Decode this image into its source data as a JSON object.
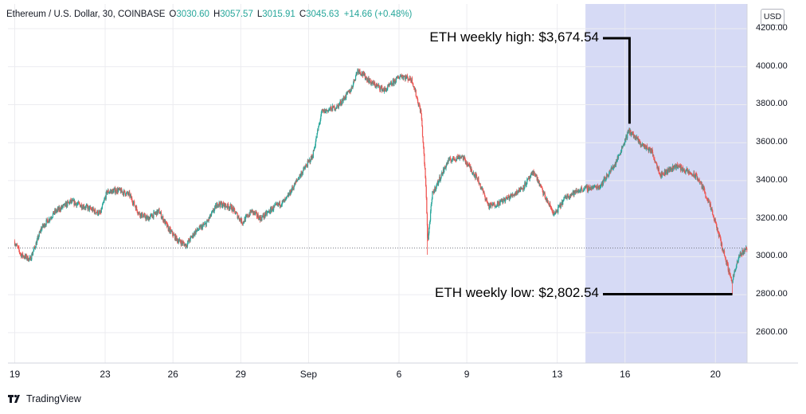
{
  "header": {
    "symbol": "Ethereum / U.S. Dollar, 30, COINBASE",
    "o_label": "O",
    "o": "3030.60",
    "h_label": "H",
    "h": "3057.57",
    "l_label": "L",
    "l": "3015.91",
    "c_label": "C",
    "c": "3045.63",
    "change": "+14.66 (+0.48%)"
  },
  "currency_button": "USD",
  "branding": "TradingView",
  "colors": {
    "up": "#26a69a",
    "down": "#ef5350",
    "highlight": "#d6daf5",
    "grid": "#ececf0",
    "annotation": "#000000"
  },
  "chart_data": {
    "type": "candlestick",
    "ylim": [
      2440,
      4330
    ],
    "yticks": [
      "2600.00",
      "2800.00",
      "3000.00",
      "3200.00",
      "3400.00",
      "3600.00",
      "3800.00",
      "4000.00",
      "4200.00"
    ],
    "ytick_values": [
      2600,
      2800,
      3000,
      3200,
      3400,
      3600,
      3800,
      4000,
      4200
    ],
    "xticks": [
      "19",
      "23",
      "26",
      "29",
      "Sep",
      "6",
      "9",
      "13",
      "16",
      "20"
    ],
    "xtick_days": [
      0,
      4,
      7,
      10,
      13,
      17,
      20,
      24,
      27,
      31
    ],
    "xlim_days": [
      -0.3,
      32.4
    ],
    "current_price": 3045.63,
    "highlight_days": [
      25.25,
      32.4
    ],
    "anchors": [
      [
        0,
        3080
      ],
      [
        0.3,
        3010
      ],
      [
        0.7,
        2985
      ],
      [
        1.0,
        3080
      ],
      [
        1.2,
        3150
      ],
      [
        1.8,
        3235
      ],
      [
        2.5,
        3290
      ],
      [
        3.3,
        3255
      ],
      [
        3.8,
        3225
      ],
      [
        4.1,
        3340
      ],
      [
        4.6,
        3350
      ],
      [
        5.1,
        3325
      ],
      [
        5.5,
        3230
      ],
      [
        5.9,
        3200
      ],
      [
        6.4,
        3240
      ],
      [
        6.8,
        3150
      ],
      [
        7.2,
        3090
      ],
      [
        7.6,
        3060
      ],
      [
        8.0,
        3130
      ],
      [
        8.5,
        3175
      ],
      [
        9.0,
        3280
      ],
      [
        9.6,
        3260
      ],
      [
        10.1,
        3180
      ],
      [
        10.5,
        3240
      ],
      [
        10.9,
        3200
      ],
      [
        11.5,
        3260
      ],
      [
        12.0,
        3295
      ],
      [
        12.6,
        3420
      ],
      [
        13.2,
        3530
      ],
      [
        13.6,
        3760
      ],
      [
        14.3,
        3790
      ],
      [
        14.9,
        3880
      ],
      [
        15.2,
        3985
      ],
      [
        15.8,
        3915
      ],
      [
        16.4,
        3875
      ],
      [
        17.1,
        3955
      ],
      [
        17.6,
        3930
      ],
      [
        18.0,
        3755
      ],
      [
        18.2,
        3395
      ],
      [
        18.3,
        3080
      ],
      [
        18.5,
        3330
      ],
      [
        19.2,
        3505
      ],
      [
        19.8,
        3530
      ],
      [
        20.5,
        3410
      ],
      [
        21.0,
        3265
      ],
      [
        21.4,
        3280
      ],
      [
        22.0,
        3320
      ],
      [
        22.5,
        3365
      ],
      [
        23.0,
        3445
      ],
      [
        23.5,
        3310
      ],
      [
        23.9,
        3220
      ],
      [
        24.4,
        3315
      ],
      [
        25.1,
        3355
      ],
      [
        25.9,
        3370
      ],
      [
        26.6,
        3490
      ],
      [
        27.2,
        3665
      ],
      [
        27.7,
        3595
      ],
      [
        28.2,
        3555
      ],
      [
        28.6,
        3430
      ],
      [
        29.3,
        3480
      ],
      [
        29.8,
        3445
      ],
      [
        30.2,
        3420
      ],
      [
        30.5,
        3355
      ],
      [
        30.8,
        3260
      ],
      [
        31.1,
        3145
      ],
      [
        31.5,
        2975
      ],
      [
        31.75,
        2870
      ],
      [
        32.1,
        3010
      ],
      [
        32.4,
        3045
      ]
    ],
    "spikes": [
      {
        "day": 18.25,
        "low": 3010
      },
      {
        "day": 31.75,
        "low": 2802.54
      },
      {
        "day": 27.2,
        "high": 3674.54
      }
    ],
    "annotations": [
      {
        "text": "ETH weekly high: $3,674.54",
        "value": 3674.54,
        "day": 27.2,
        "type": "high"
      },
      {
        "text": "ETH weekly low: $2,802.54",
        "value": 2802.54,
        "day": 31.75,
        "type": "low"
      }
    ]
  }
}
